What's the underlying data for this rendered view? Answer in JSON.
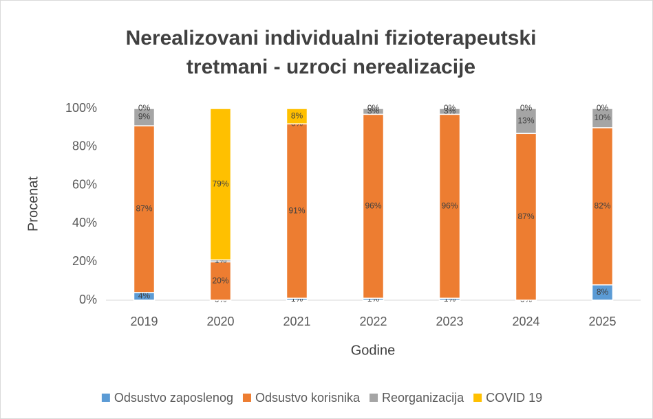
{
  "chart_data": {
    "type": "stacked_bar",
    "title": "Nerealizovani individualni fizioterapeutski tretmani - uzroci nerealizacije",
    "x_label": "Godine",
    "y_label": "Procenat",
    "categories": [
      "2019",
      "2020",
      "2021",
      "2022",
      "2023",
      "2024",
      "2025"
    ],
    "series": [
      {
        "name": "Odsustvo zaposlenog",
        "color": "#5b9bd5",
        "values": [
          4,
          0,
          1,
          1,
          1,
          0,
          8
        ],
        "value_labels": [
          "4%",
          "0%",
          "1%",
          "1%",
          "1%",
          "0%",
          "8%"
        ]
      },
      {
        "name": "Odsustvo korisnika",
        "color": "#ed7d31",
        "values": [
          87,
          20,
          91,
          96,
          96,
          87,
          82
        ],
        "value_labels": [
          "87%",
          "20%",
          "91%",
          "96%",
          "96%",
          "87%",
          "82%"
        ]
      },
      {
        "name": "Reorganizacija",
        "color": "#a5a5a5",
        "values": [
          9,
          1,
          0,
          3,
          3,
          13,
          10
        ],
        "value_labels": [
          "9%",
          "1%",
          "0%",
          "3%",
          "3%",
          "13%",
          "10%"
        ]
      },
      {
        "name": "COVID 19",
        "color": "#ffc000",
        "values": [
          0,
          79,
          8,
          0,
          0,
          0,
          0
        ],
        "value_labels": [
          "0%",
          "79%",
          "8%",
          "0%",
          "0%",
          "0%",
          "0%"
        ]
      }
    ],
    "ylim": [
      0,
      100
    ],
    "yticks": [
      {
        "value": 0,
        "label": "0%"
      },
      {
        "value": 20,
        "label": "20%"
      },
      {
        "value": 40,
        "label": "40%"
      },
      {
        "value": 60,
        "label": "60%"
      },
      {
        "value": 80,
        "label": "80%"
      },
      {
        "value": 100,
        "label": "100%"
      }
    ],
    "legend": "bottom"
  }
}
